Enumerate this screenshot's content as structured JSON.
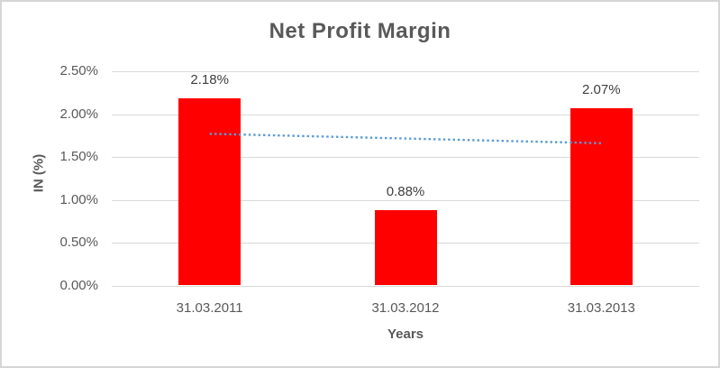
{
  "chart_data": {
    "type": "bar",
    "title": "Net Profit Margin",
    "xlabel": "Years",
    "ylabel": "IN (%)",
    "categories": [
      "31.03.2011",
      "31.03.2012",
      "31.03.2013"
    ],
    "values": [
      2.18,
      0.88,
      2.07
    ],
    "data_labels": [
      "2.18%",
      "0.88%",
      "2.07%"
    ],
    "y_ticks": [
      "2.50%",
      "2.00%",
      "1.50%",
      "1.00%",
      "0.50%",
      "0.00%"
    ],
    "ylim": [
      0,
      2.5
    ],
    "y_tick_step": 0.5,
    "grid": true,
    "legend": false,
    "trendline": {
      "type": "linear",
      "style": "dotted",
      "values_at_first_and_last_category": [
        1.77,
        1.66
      ]
    },
    "colors": {
      "bar": "#FF0000",
      "trendline": "#5B9BD5",
      "gridline": "#D9D9D9",
      "text": "#595959",
      "data_label_text": "#404040",
      "border": "#D6D6D6",
      "background": "#FFFFFF"
    }
  }
}
